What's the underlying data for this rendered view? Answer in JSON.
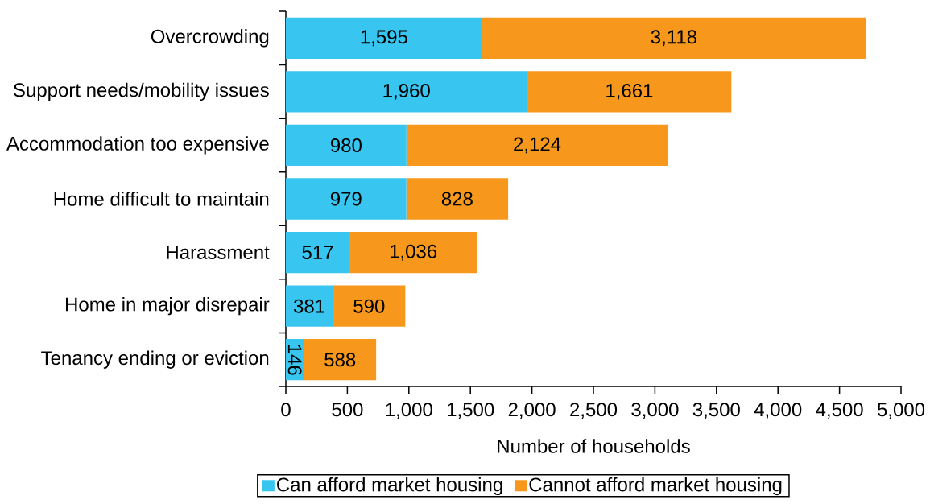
{
  "chart_data": {
    "type": "bar",
    "orientation": "horizontal",
    "stacked": true,
    "xlabel": "Number of households",
    "categories": [
      "Overcrowding",
      "Support needs/mobility issues",
      "Accommodation too expensive",
      "Home difficult to maintain",
      "Harassment",
      "Home in major disrepair",
      "Tenancy ending or eviction"
    ],
    "series": [
      {
        "name": "Can afford market housing",
        "color": "#38c5f0",
        "values": [
          1595,
          1960,
          980,
          979,
          517,
          381,
          146
        ],
        "value_labels": [
          "1,595",
          "1,960",
          "980",
          "979",
          "517",
          "381",
          "146"
        ]
      },
      {
        "name": "Cannot afford market housing",
        "color": "#f7981d",
        "values": [
          3118,
          1661,
          2124,
          828,
          1036,
          590,
          588
        ],
        "value_labels": [
          "3,118",
          "1,661",
          "2,124",
          "828",
          "1,036",
          "590",
          "588"
        ]
      }
    ],
    "xlim": [
      0,
      5000
    ],
    "xticks": [
      0,
      500,
      {
        "value": 1000,
        "label": "1,000"
      },
      {
        "value": 1500,
        "label": "1,500"
      },
      {
        "value": 2000,
        "label": "2,000"
      },
      {
        "value": 2500,
        "label": "2,500"
      },
      {
        "value": 3000,
        "label": "3,000"
      },
      {
        "value": 3500,
        "label": "3,500"
      },
      {
        "value": 4000,
        "label": "4,000"
      },
      {
        "value": 4500,
        "label": "4,500"
      },
      {
        "value": 5000,
        "label": "5,000"
      }
    ],
    "legend": "bottom"
  }
}
